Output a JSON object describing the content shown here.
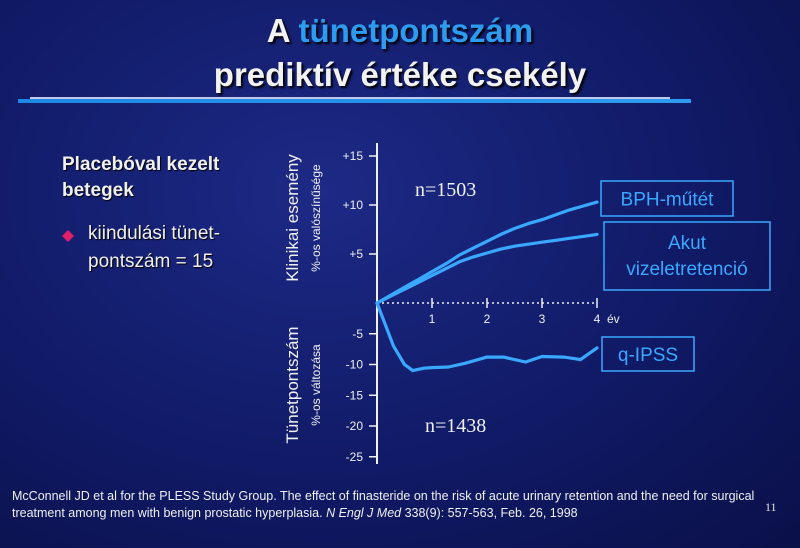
{
  "slide": {
    "title_plain": "A ",
    "title_accent": "tünetpontszám",
    "title_line2": "prediktív értéke csekély",
    "left_heading": "Placebóval kezelt betegek",
    "bullet_text": "kiindulási tünet-pontszám = 15",
    "footer_plain": "McConnell JD et al for the PLESS Study Group. The effect of finasteride on the risk of acute urinary retention and the need for surgical treatment among men with benign prostatic hyperplasia. ",
    "footer_journal": "N Engl J Med",
    "footer_citation": " 338(9): 557-563, Feb. 26, 1998",
    "page_number": "11"
  },
  "colors": {
    "background": "#101a66",
    "accent": "#2d9cf0",
    "series_line": "#3aa8ff",
    "bullet": "#e0206a",
    "text": "#f0f0f0"
  },
  "chart_data": [
    {
      "type": "line",
      "ylabel": "Klinikai esemény",
      "ylabel_sub": "%-os valószínűsége",
      "annotation": "n=1503",
      "ylim": [
        0,
        15
      ],
      "yticks": [
        "+15",
        "+10",
        "+5"
      ],
      "ytick_values": [
        15,
        10,
        5
      ],
      "series": [
        {
          "name": "BPH-műtét",
          "x": [
            0,
            0.25,
            0.5,
            0.75,
            1,
            1.25,
            1.5,
            1.75,
            2,
            2.25,
            2.5,
            2.75,
            3,
            3.25,
            3.5,
            3.75,
            4
          ],
          "y": [
            0,
            0.8,
            1.6,
            2.4,
            3.2,
            4.0,
            4.9,
            5.6,
            6.3,
            7.0,
            7.6,
            8.1,
            8.5,
            9.0,
            9.5,
            9.9,
            10.3
          ]
        },
        {
          "name": "Akut vizeletretenció",
          "x": [
            0,
            0.25,
            0.5,
            0.75,
            1,
            1.25,
            1.5,
            1.75,
            2,
            2.25,
            2.5,
            2.75,
            3,
            3.25,
            3.5,
            3.75,
            4
          ],
          "y": [
            0,
            0.7,
            1.4,
            2.1,
            2.8,
            3.5,
            4.2,
            4.7,
            5.1,
            5.5,
            5.8,
            6.0,
            6.2,
            6.4,
            6.6,
            6.8,
            7.0
          ]
        }
      ]
    },
    {
      "type": "line",
      "ylabel": "Tünetpontszám",
      "ylabel_sub": "%-os változása",
      "annotation": "n=1438",
      "ylim": [
        -25,
        0
      ],
      "yticks": [
        "-5",
        "-10",
        "-15",
        "-20",
        "-25"
      ],
      "ytick_values": [
        -5,
        -10,
        -15,
        -20,
        -25
      ],
      "xticks": [
        "1",
        "2",
        "3",
        "4"
      ],
      "xtick_values": [
        1,
        2,
        3,
        4
      ],
      "xunit": "év",
      "series": [
        {
          "name": "q-IPSS",
          "x": [
            0,
            0.3,
            0.5,
            0.65,
            0.85,
            1.0,
            1.3,
            1.6,
            2.0,
            2.3,
            2.7,
            3.0,
            3.4,
            3.7,
            4.0
          ],
          "y": [
            0,
            -7,
            -10,
            -11,
            -10.6,
            -10.5,
            -10.4,
            -9.8,
            -8.8,
            -8.8,
            -9.6,
            -8.7,
            -8.8,
            -9.2,
            -7.3
          ]
        }
      ]
    }
  ]
}
